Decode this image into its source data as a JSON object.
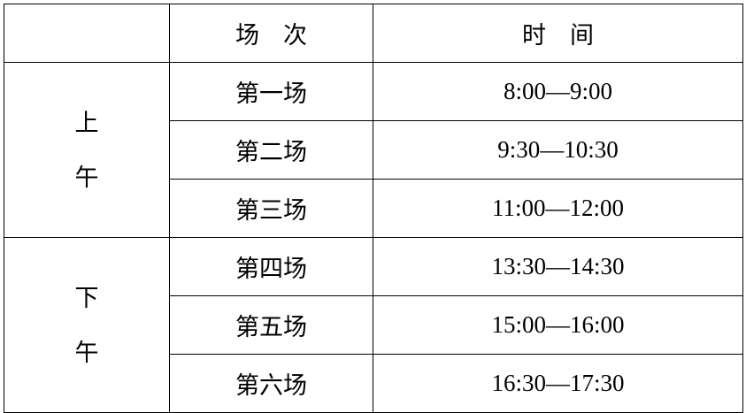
{
  "header": {
    "blank": "",
    "session": "场　次",
    "time": "时　间"
  },
  "periods": [
    {
      "label_1": "上",
      "label_2": "午"
    },
    {
      "label_1": "下",
      "label_2": "午"
    }
  ],
  "rows": [
    {
      "session": "第一场",
      "time": "8:00—9:00"
    },
    {
      "session": "第二场",
      "time": "9:30—10:30"
    },
    {
      "session": "第三场",
      "time": "11:00—12:00"
    },
    {
      "session": "第四场",
      "time": "13:30—14:30"
    },
    {
      "session": "第五场",
      "time": "15:00—16:00"
    },
    {
      "session": "第六场",
      "time": "16:30—17:30"
    }
  ]
}
